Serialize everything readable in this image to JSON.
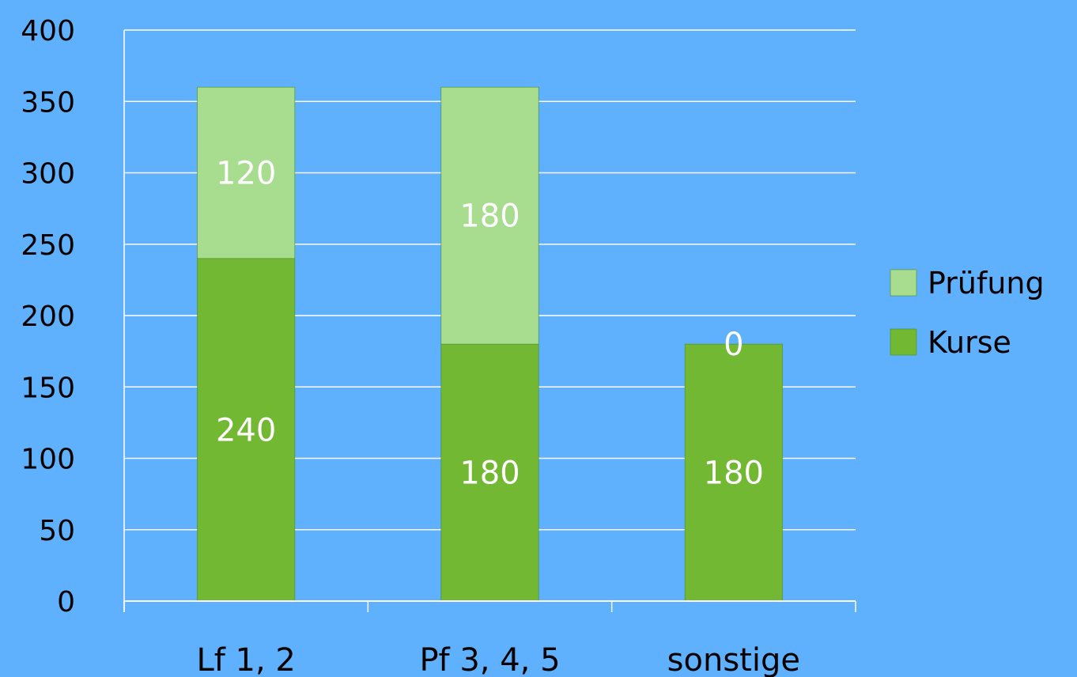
{
  "chart_data": {
    "type": "bar",
    "stacked": true,
    "categories": [
      "Lf 1, 2",
      "Pf 3, 4, 5",
      "sonstige"
    ],
    "series": [
      {
        "name": "Kurse",
        "values": [
          240,
          180,
          180
        ],
        "color": "#72b832"
      },
      {
        "name": "Prüfung",
        "values": [
          120,
          180,
          0
        ],
        "color": "#a8dc8f"
      }
    ],
    "yticks": [
      0,
      50,
      100,
      150,
      200,
      250,
      300,
      350,
      400
    ],
    "ylim": [
      0,
      400
    ],
    "grid": true,
    "legend": "right"
  },
  "colors": {
    "background": "#5fb1fe",
    "axis": "#ffffff",
    "grid": "#ffffff"
  }
}
